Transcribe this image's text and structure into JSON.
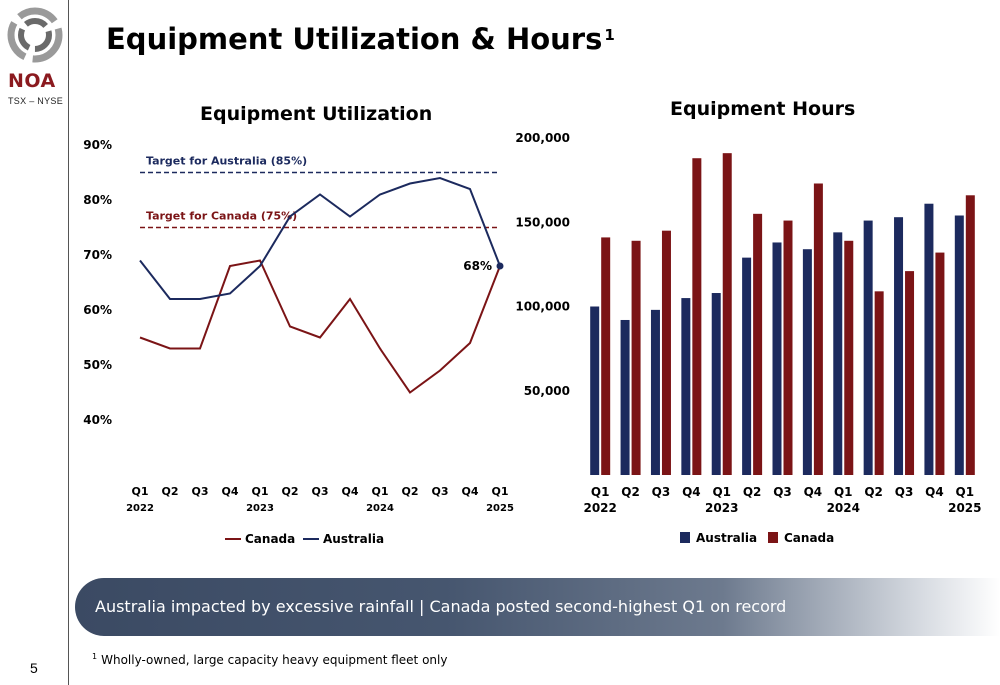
{
  "logo": {
    "name": "NOA",
    "exchange": "TSX – NYSE"
  },
  "page": {
    "title": "Equipment Utilization & Hours",
    "title_footnote_marker": "1",
    "banner_text": "Australia impacted by excessive rainfall | Canada posted second-highest Q1 on record",
    "footnote_marker": "1",
    "footnote_text": "Wholly-owned, large capacity heavy equipment fleet only",
    "page_number": "5"
  },
  "colors": {
    "australia": "#1c2a5e",
    "canada": "#7b1416",
    "banner": "#3b4a63"
  },
  "chart_data": [
    {
      "type": "line",
      "title": "Equipment Utilization",
      "categories": [
        "Q1",
        "Q2",
        "Q3",
        "Q4",
        "Q1",
        "Q2",
        "Q3",
        "Q4",
        "Q1",
        "Q2",
        "Q3",
        "Q4",
        "Q1"
      ],
      "year_labels": [
        {
          "index": 0,
          "label": "2022"
        },
        {
          "index": 4,
          "label": "2023"
        },
        {
          "index": 8,
          "label": "2024"
        },
        {
          "index": 12,
          "label": "2025"
        }
      ],
      "ylim": [
        30,
        90
      ],
      "yticks": [
        40,
        50,
        60,
        70,
        80,
        90
      ],
      "ytick_labels": [
        "40%",
        "50%",
        "60%",
        "70%",
        "80%",
        "90%"
      ],
      "series": [
        {
          "name": "Canada",
          "color": "#7b1416",
          "values": [
            55,
            53,
            53,
            68,
            69,
            57,
            55,
            62,
            53,
            45,
            49,
            54,
            68
          ]
        },
        {
          "name": "Australia",
          "color": "#1c2a5e",
          "values": [
            69,
            62,
            62,
            63,
            68,
            77,
            81,
            77,
            81,
            83,
            84,
            82,
            68
          ]
        }
      ],
      "targets": [
        {
          "label": "Target for Australia (85%)",
          "value": 85,
          "color": "#1c2a5e"
        },
        {
          "label": "Target for Canada (75%)",
          "value": 75,
          "color": "#7b1416"
        }
      ],
      "annotation": {
        "label": "68%",
        "index": 12,
        "value": 68
      },
      "legend": "bottom"
    },
    {
      "type": "bar",
      "title": "Equipment Hours",
      "categories": [
        "Q1",
        "Q2",
        "Q3",
        "Q4",
        "Q1",
        "Q2",
        "Q3",
        "Q4",
        "Q1",
        "Q2",
        "Q3",
        "Q4",
        "Q1"
      ],
      "year_labels": [
        {
          "index": 0,
          "label": "2022"
        },
        {
          "index": 4,
          "label": "2023"
        },
        {
          "index": 8,
          "label": "2024"
        },
        {
          "index": 12,
          "label": "2025"
        }
      ],
      "ylim": [
        0,
        200000
      ],
      "yticks": [
        50000,
        100000,
        150000,
        200000
      ],
      "ytick_labels": [
        "50,000",
        "100,000",
        "150,000",
        "200,000"
      ],
      "series": [
        {
          "name": "Australia",
          "color": "#1c2a5e",
          "values": [
            100000,
            92000,
            98000,
            105000,
            108000,
            129000,
            138000,
            134000,
            144000,
            151000,
            153000,
            161000,
            154000
          ]
        },
        {
          "name": "Canada",
          "color": "#7b1416",
          "values": [
            141000,
            139000,
            145000,
            188000,
            191000,
            155000,
            151000,
            173000,
            139000,
            109000,
            121000,
            132000,
            166000
          ]
        }
      ],
      "legend": "bottom"
    }
  ]
}
